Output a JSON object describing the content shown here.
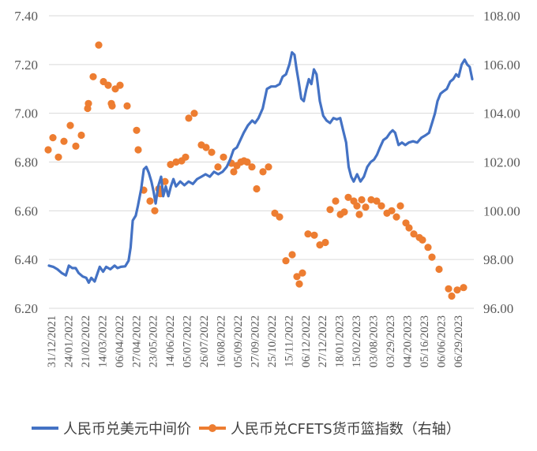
{
  "chart_data": {
    "type": "line+scatter",
    "title": "",
    "xlabel": "",
    "ylabel": "",
    "y2label": "",
    "grid": "horizontal",
    "legend_position": "bottom",
    "categories": [
      "31/12/2021",
      "24/01/2022",
      "21/02/2022",
      "14/03/2022",
      "06/04/2022",
      "27/04/2022",
      "23/05/2022",
      "14/06/2022",
      "05/07/2022",
      "26/07/2022",
      "16/08/2022",
      "05/09/2022",
      "27/09/2022",
      "25/10/2022",
      "15/11/2022",
      "06/12/2022",
      "27/12/2022",
      "18/01/2023",
      "15/02/2023",
      "03/08/2023",
      "03/29/2023",
      "04/20/2023",
      "05/16/2023",
      "06/06/2023",
      "06/29/2023"
    ],
    "yaxis_left": {
      "min": 6.2,
      "max": 7.4,
      "step": 0.2,
      "ticks": [
        "6.20",
        "6.40",
        "6.60",
        "6.80",
        "7.00",
        "7.20",
        "7.40"
      ]
    },
    "yaxis_right": {
      "min": 96.0,
      "max": 108.0,
      "step": 2.0,
      "ticks": [
        "96.00",
        "98.00",
        "100.00",
        "102.00",
        "104.00",
        "106.00",
        "108.00"
      ]
    },
    "series": [
      {
        "name": "人民币兑美元中间价",
        "axis": "left",
        "type": "line",
        "color": "#4472C4",
        "points": [
          [
            0.0,
            6.375
          ],
          [
            0.01,
            6.37
          ],
          [
            0.02,
            6.36
          ],
          [
            0.03,
            6.345
          ],
          [
            0.04,
            6.335
          ],
          [
            0.047,
            6.375
          ],
          [
            0.055,
            6.365
          ],
          [
            0.063,
            6.365
          ],
          [
            0.07,
            6.345
          ],
          [
            0.08,
            6.33
          ],
          [
            0.088,
            6.325
          ],
          [
            0.094,
            6.305
          ],
          [
            0.1,
            6.325
          ],
          [
            0.108,
            6.31
          ],
          [
            0.115,
            6.345
          ],
          [
            0.12,
            6.37
          ],
          [
            0.128,
            6.35
          ],
          [
            0.135,
            6.37
          ],
          [
            0.145,
            6.36
          ],
          [
            0.155,
            6.375
          ],
          [
            0.162,
            6.365
          ],
          [
            0.17,
            6.37
          ],
          [
            0.18,
            6.372
          ],
          [
            0.188,
            6.395
          ],
          [
            0.193,
            6.45
          ],
          [
            0.198,
            6.56
          ],
          [
            0.205,
            6.58
          ],
          [
            0.21,
            6.62
          ],
          [
            0.218,
            6.69
          ],
          [
            0.224,
            6.77
          ],
          [
            0.23,
            6.78
          ],
          [
            0.236,
            6.755
          ],
          [
            0.242,
            6.72
          ],
          [
            0.247,
            6.68
          ],
          [
            0.252,
            6.63
          ],
          [
            0.258,
            6.7
          ],
          [
            0.265,
            6.74
          ],
          [
            0.27,
            6.66
          ],
          [
            0.276,
            6.7
          ],
          [
            0.282,
            6.66
          ],
          [
            0.288,
            6.7
          ],
          [
            0.294,
            6.73
          ],
          [
            0.3,
            6.7
          ],
          [
            0.31,
            6.72
          ],
          [
            0.32,
            6.705
          ],
          [
            0.33,
            6.72
          ],
          [
            0.34,
            6.71
          ],
          [
            0.35,
            6.73
          ],
          [
            0.36,
            6.74
          ],
          [
            0.37,
            6.75
          ],
          [
            0.38,
            6.74
          ],
          [
            0.39,
            6.76
          ],
          [
            0.4,
            6.75
          ],
          [
            0.41,
            6.76
          ],
          [
            0.42,
            6.78
          ],
          [
            0.428,
            6.81
          ],
          [
            0.436,
            6.85
          ],
          [
            0.444,
            6.86
          ],
          [
            0.452,
            6.89
          ],
          [
            0.46,
            6.92
          ],
          [
            0.47,
            6.95
          ],
          [
            0.48,
            6.97
          ],
          [
            0.487,
            6.96
          ],
          [
            0.495,
            6.98
          ],
          [
            0.505,
            7.02
          ],
          [
            0.515,
            7.1
          ],
          [
            0.525,
            7.11
          ],
          [
            0.535,
            7.11
          ],
          [
            0.545,
            7.12
          ],
          [
            0.552,
            7.15
          ],
          [
            0.56,
            7.16
          ],
          [
            0.568,
            7.2
          ],
          [
            0.574,
            7.25
          ],
          [
            0.58,
            7.24
          ],
          [
            0.585,
            7.18
          ],
          [
            0.59,
            7.13
          ],
          [
            0.596,
            7.06
          ],
          [
            0.602,
            7.05
          ],
          [
            0.608,
            7.1
          ],
          [
            0.614,
            7.14
          ],
          [
            0.62,
            7.12
          ],
          [
            0.626,
            7.18
          ],
          [
            0.632,
            7.16
          ],
          [
            0.64,
            7.05
          ],
          [
            0.648,
            6.99
          ],
          [
            0.656,
            6.97
          ],
          [
            0.664,
            6.96
          ],
          [
            0.672,
            6.98
          ],
          [
            0.68,
            6.975
          ],
          [
            0.688,
            6.98
          ],
          [
            0.695,
            6.93
          ],
          [
            0.702,
            6.88
          ],
          [
            0.708,
            6.78
          ],
          [
            0.714,
            6.74
          ],
          [
            0.72,
            6.72
          ],
          [
            0.728,
            6.75
          ],
          [
            0.736,
            6.72
          ],
          [
            0.744,
            6.74
          ],
          [
            0.752,
            6.78
          ],
          [
            0.76,
            6.8
          ],
          [
            0.768,
            6.81
          ],
          [
            0.775,
            6.83
          ],
          [
            0.782,
            6.86
          ],
          [
            0.79,
            6.89
          ],
          [
            0.798,
            6.9
          ],
          [
            0.806,
            6.92
          ],
          [
            0.812,
            6.93
          ],
          [
            0.818,
            6.92
          ],
          [
            0.826,
            6.87
          ],
          [
            0.834,
            6.88
          ],
          [
            0.842,
            6.87
          ],
          [
            0.85,
            6.88
          ],
          [
            0.86,
            6.885
          ],
          [
            0.87,
            6.88
          ],
          [
            0.88,
            6.9
          ],
          [
            0.89,
            6.91
          ],
          [
            0.898,
            6.92
          ],
          [
            0.905,
            6.96
          ],
          [
            0.912,
            7.0
          ],
          [
            0.918,
            7.05
          ],
          [
            0.925,
            7.08
          ],
          [
            0.932,
            7.09
          ],
          [
            0.94,
            7.1
          ],
          [
            0.948,
            7.13
          ],
          [
            0.955,
            7.14
          ],
          [
            0.962,
            7.16
          ],
          [
            0.968,
            7.15
          ],
          [
            0.975,
            7.2
          ],
          [
            0.982,
            7.22
          ],
          [
            0.988,
            7.2
          ],
          [
            0.994,
            7.19
          ],
          [
            1.0,
            7.14
          ]
        ]
      },
      {
        "name": "人民币兑CFETS货币篮指数（右轴）",
        "axis": "right",
        "type": "scatter",
        "color": "#ED7D31",
        "points": [
          [
            61,
            102.5
          ],
          [
            67,
            103.0
          ],
          [
            74,
            102.2
          ],
          [
            81,
            102.85
          ],
          [
            89,
            103.5
          ],
          [
            96,
            102.65
          ],
          [
            103,
            103.1
          ],
          [
            111,
            104.2
          ],
          [
            112,
            104.4
          ],
          [
            118,
            105.5
          ],
          [
            125,
            106.8
          ],
          [
            131,
            105.3
          ],
          [
            137,
            105.15
          ],
          [
            141,
            104.4
          ],
          [
            142,
            104.3
          ],
          [
            146,
            105.0
          ],
          [
            152,
            105.15
          ],
          [
            161,
            104.3
          ],
          [
            173,
            103.3
          ],
          [
            175,
            102.5
          ],
          [
            182,
            100.85
          ],
          [
            190,
            100.4
          ],
          [
            196,
            100.0
          ],
          [
            201,
            100.9
          ],
          [
            203,
            100.7
          ],
          [
            209,
            101.2
          ],
          [
            216,
            101.9
          ],
          [
            223,
            102.0
          ],
          [
            230,
            102.05
          ],
          [
            235,
            102.2
          ],
          [
            239,
            103.8
          ],
          [
            246,
            104.0
          ],
          [
            255,
            102.7
          ],
          [
            261,
            102.6
          ],
          [
            268,
            102.4
          ],
          [
            276,
            101.8
          ],
          [
            283,
            102.2
          ],
          [
            293,
            101.95
          ],
          [
            296,
            101.6
          ],
          [
            300,
            101.85
          ],
          [
            305,
            102.0
          ],
          [
            309,
            102.05
          ],
          [
            313,
            102.0
          ],
          [
            319,
            101.8
          ],
          [
            325,
            100.9
          ],
          [
            333,
            101.6
          ],
          [
            340,
            101.8
          ],
          [
            348,
            99.9
          ],
          [
            354,
            99.75
          ],
          [
            362,
            97.95
          ],
          [
            370,
            98.2
          ],
          [
            376,
            97.3
          ],
          [
            379,
            97.0
          ],
          [
            383,
            97.45
          ],
          [
            390,
            99.05
          ],
          [
            398,
            99.0
          ],
          [
            405,
            98.6
          ],
          [
            412,
            98.7
          ],
          [
            418,
            100.05
          ],
          [
            425,
            100.4
          ],
          [
            431,
            99.85
          ],
          [
            436,
            99.95
          ],
          [
            441,
            100.55
          ],
          [
            448,
            100.4
          ],
          [
            452,
            100.2
          ],
          [
            455,
            99.85
          ],
          [
            458,
            100.45
          ],
          [
            463,
            100.15
          ],
          [
            470,
            100.45
          ],
          [
            477,
            100.4
          ],
          [
            483,
            100.2
          ],
          [
            490,
            99.9
          ],
          [
            496,
            100.0
          ],
          [
            502,
            99.75
          ],
          [
            507,
            100.2
          ],
          [
            514,
            99.5
          ],
          [
            518,
            99.3
          ],
          [
            524,
            99.05
          ],
          [
            531,
            98.9
          ],
          [
            535,
            98.8
          ],
          [
            542,
            98.5
          ],
          [
            547,
            98.1
          ],
          [
            556,
            97.6
          ],
          [
            568,
            96.8
          ],
          [
            572,
            96.5
          ],
          [
            579,
            96.75
          ],
          [
            587,
            96.85
          ]
        ]
      }
    ]
  },
  "legend": {
    "item1_label": "人民币兑美元中间价",
    "item2_label": "人民币兑CFETS货币篮指数（右轴）"
  },
  "colors": {
    "line": "#4472C4",
    "dots": "#ED7D31",
    "grid": "#D9D9D9",
    "text": "#595959"
  }
}
